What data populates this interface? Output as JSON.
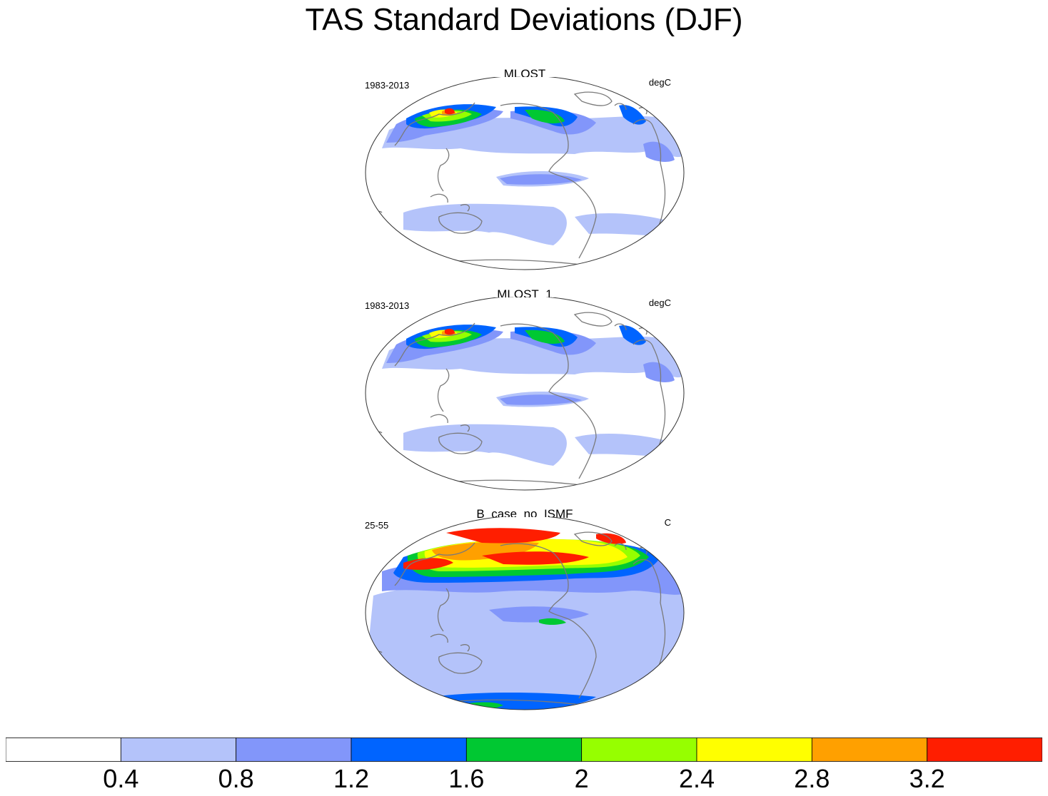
{
  "title": "TAS Standard Deviations (DJF)",
  "panels": [
    {
      "name": "MLOST",
      "period": "1983-2013",
      "units": "degC",
      "variant": "obs"
    },
    {
      "name": "MLOST_1",
      "period": "1983-2013",
      "units": "degC",
      "variant": "obs"
    },
    {
      "name": "B_case_no_ISMF",
      "period": "25-55",
      "units": "C",
      "variant": "model"
    }
  ],
  "colorbar": {
    "colors": [
      "#ffffff",
      "#b4c3fa",
      "#8296fa",
      "#0064ff",
      "#00c832",
      "#96ff00",
      "#ffff00",
      "#ffa000",
      "#ff1e00"
    ],
    "labels": [
      "0.4",
      "0.8",
      "1.2",
      "1.6",
      "2",
      "2.4",
      "2.8",
      "3.2"
    ]
  }
}
